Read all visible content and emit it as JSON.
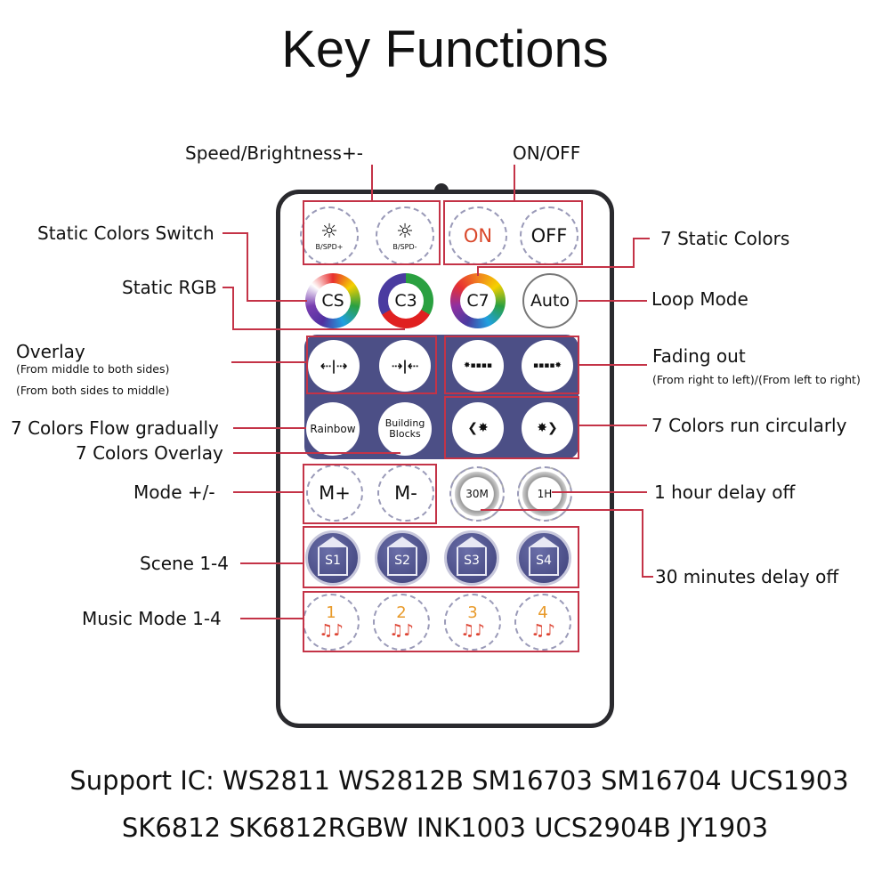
{
  "title": "Key Functions",
  "labels": {
    "speed_brightness": "Speed/Brightness+-",
    "on_off": "ON/OFF",
    "static_colors_switch": "Static Colors Switch",
    "static_rgb": "Static RGB",
    "seven_static_colors": "7 Static Colors",
    "loop_mode": "Loop Mode",
    "overlay": "Overlay",
    "overlay_sub1": "(From middle to both sides)",
    "overlay_sub2": "(From both sides to middle)",
    "fading_out": "Fading out",
    "fading_out_sub": "(From right to left)/(From left to right)",
    "flow_gradually": "7 Colors Flow gradually",
    "colors_overlay": "7 Colors Overlay",
    "run_circularly": "7 Colors run circularly",
    "mode": "Mode +/-",
    "hour_delay": "1 hour delay off",
    "minutes_delay": "30 minutes delay off",
    "scene": "Scene 1-4",
    "music": "Music Mode 1-4"
  },
  "buttons": {
    "bspd_plus": "B/SPD+",
    "bspd_minus": "B/SPD-",
    "on": "ON",
    "off": "OFF",
    "cs": "CS",
    "c3": "C3",
    "c7": "C7",
    "auto": "Auto",
    "overlay_out": "⇠|⇢",
    "overlay_in": "⇢|⇠",
    "fade_rl": "✸▪▪▪▪",
    "fade_lr": "▪▪▪▪✸",
    "rainbow": "Rainbow",
    "building_blocks": "Building Blocks",
    "circ_left": "❮✸",
    "circ_right": "✸❯",
    "m_plus": "M+",
    "m_minus": "M-",
    "t30m": "30M",
    "t1h": "1H",
    "scenes": [
      "S1",
      "S2",
      "S3",
      "S4"
    ],
    "music": [
      "1",
      "2",
      "3",
      "4"
    ],
    "music_icon": "♫♪"
  },
  "support": {
    "line1": "Support IC: WS2811 WS2812B SM16703 SM16704 UCS1903",
    "line2": "SK6812 SK6812RGBW INK1003 UCS2904B JY1903"
  },
  "colors": {
    "accent_box": "#c43347",
    "panel": "#4c4f86",
    "on_text": "#d9482b",
    "music_number": "#e89a2a"
  }
}
